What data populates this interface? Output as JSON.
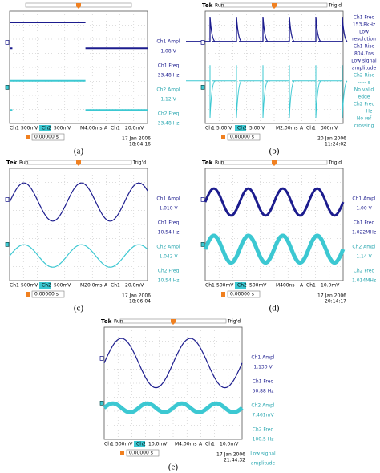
{
  "panels": [
    {
      "label": "(a)",
      "header": null,
      "measurements": [
        "Ch1 Ampl",
        "1.08 V",
        "Ch1 Freq",
        "33.48 Hz",
        "Ch2 Ampl",
        "1.12 V",
        "Ch2 Freq",
        "33.48 Hz"
      ],
      "footer": [
        "Ch1",
        "500mV",
        "Ch2",
        "500mV",
        "M4.00ms",
        "A",
        "Ch1",
        "20.0mV"
      ],
      "trigger_time": "0.00000 s",
      "date": "17 Jan 2006",
      "time": "18:04:16"
    },
    {
      "label": "(b)",
      "header": [
        "Tek",
        "Run",
        "Trig'd"
      ],
      "measurements": [
        "Ch1 Freq",
        "153.8kHz",
        "Low",
        "resolution",
        "Ch1 Rise",
        "804.7ns",
        "Low signal",
        "amplitude",
        "Ch2 Rise",
        "----- s",
        "No valid",
        "edge",
        "Ch2 Freq",
        "----- Hz",
        "No ref",
        "crossing"
      ],
      "footer": [
        "Ch1",
        "5.00 V",
        "Ch2",
        "5.00 V",
        "M2.00ms",
        "A",
        "Ch1",
        "300mV"
      ],
      "trigger_time": "0.00000 s",
      "date": "20 Jan 2006",
      "time": "11:24:02"
    },
    {
      "label": "(c)",
      "header": [
        "Tek",
        "Run",
        "Trig'd"
      ],
      "measurements": [
        "Ch1 Ampl",
        "1.010 V",
        "Ch1 Freq",
        "10.54 Hz",
        "Ch2 Ampl",
        "1.042 V",
        "Ch2 Freq",
        "10.54 Hz"
      ],
      "footer": [
        "Ch1",
        "500mV",
        "Ch2",
        "500mV",
        "M20.0ms",
        "A",
        "Ch1",
        "20.0mV"
      ],
      "trigger_time": "0.00000 s",
      "date": "17 Jan 2006",
      "time": "18:06:04"
    },
    {
      "label": "(d)",
      "header": [
        "Tek",
        "Run",
        "Trig'd"
      ],
      "measurements": [
        "Ch1 Ampl",
        "1.00 V",
        "Ch1 Freq",
        "1.022MHz",
        "Ch2 Ampl",
        "1.14 V",
        "Ch2 Freq",
        "1.014MHz"
      ],
      "footer": [
        "Ch1",
        "500mV",
        "Ch2",
        "500mV",
        "M400ns",
        "A",
        "Ch1",
        "10.0mV"
      ],
      "trigger_time": "0.00000 s",
      "date": "17 Jan 2006",
      "time": "20:14:17"
    },
    {
      "label": "(e)",
      "header": [
        "Tek",
        "Run",
        "Trig'd"
      ],
      "measurements": [
        "Ch1 Ampl",
        "1.130 V",
        "Ch1 Freq",
        "50.88 Hz",
        "Ch2 Ampl",
        "7.461mV",
        "Ch2 Freq",
        "100.5 Hz",
        "Low signal",
        "amplitude"
      ],
      "footer": [
        "Ch1",
        "500mV",
        "Ch2",
        "10.0mV",
        "M4.00ms",
        "A",
        "Ch1",
        "10.0mV"
      ],
      "trigger_time": "0.00000 s",
      "date": "17 Jan 2006",
      "time": "21:44:32"
    }
  ]
}
